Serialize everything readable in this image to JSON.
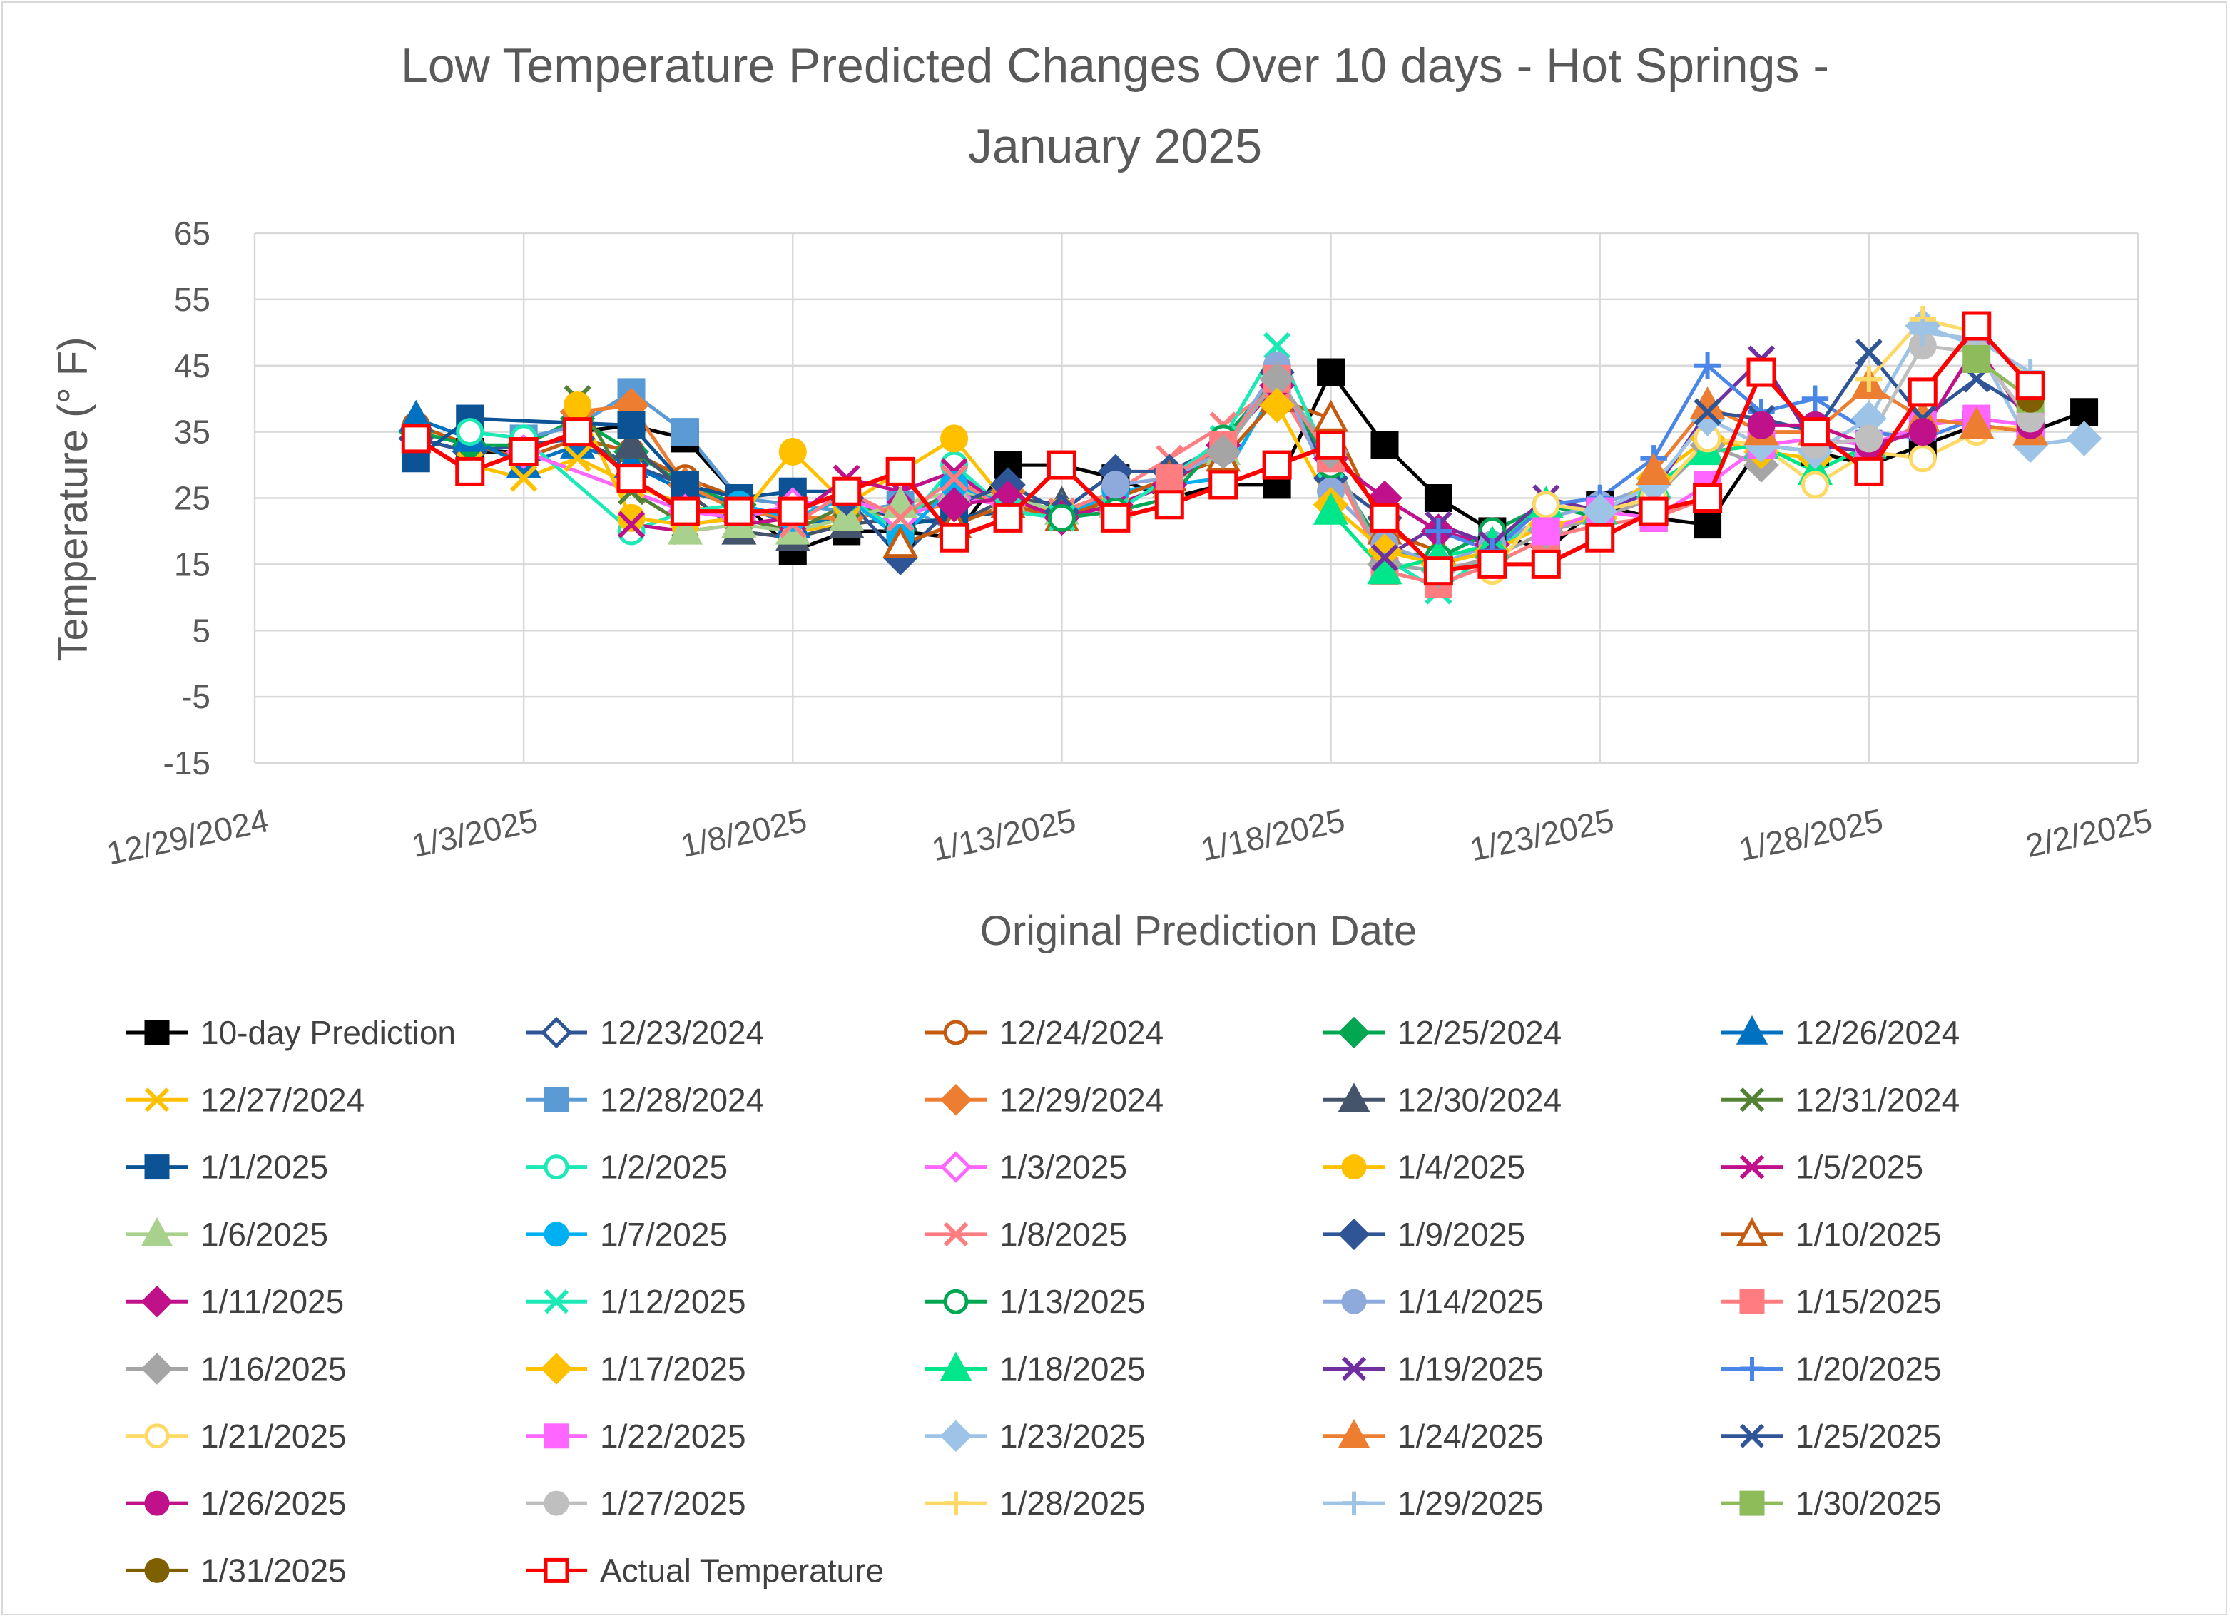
{
  "chart_data": {
    "type": "line",
    "title_lines": [
      "Low Temperature Predicted Changes Over 10 days - Hot Springs -",
      "January 2025"
    ],
    "xlabel": "Original Prediction Date",
    "ylabel": "Temperature (° F)",
    "ylim": [
      -15,
      65
    ],
    "y_ticks": [
      "65",
      "55",
      "45",
      "35",
      "25",
      "15",
      "5",
      "-5",
      "-15"
    ],
    "x_range_days": [
      0,
      35
    ],
    "x_ticks": [
      "12/29/2024",
      "1/3/2025",
      "1/8/2025",
      "1/13/2025",
      "1/18/2025",
      "1/23/2025",
      "1/28/2025",
      "2/2/2025"
    ],
    "x_days_origin": "12/29/2024",
    "series": [
      {
        "name": "10-day Prediction",
        "color": "#000000",
        "marker": "square",
        "fill": true,
        "x": [
          3,
          4,
          5,
          6,
          7,
          8,
          9,
          10,
          11,
          12,
          13,
          14,
          15,
          16,
          17,
          18,
          19,
          20,
          21,
          22,
          23,
          24,
          25,
          26,
          27,
          28,
          29,
          30,
          31,
          32,
          33,
          34
        ],
        "values": [
          34,
          32,
          32,
          35,
          36,
          34,
          25,
          17,
          20,
          20,
          19,
          30,
          30,
          28,
          25,
          27,
          27,
          44,
          33,
          25,
          20,
          17,
          24,
          22,
          21,
          33,
          32,
          30,
          33,
          36,
          35,
          38
        ]
      },
      {
        "name": "12/23/2024",
        "color": "#2f5597",
        "marker": "diamond",
        "fill": false,
        "x": [
          3,
          4,
          5,
          6,
          7,
          8
        ],
        "values": [
          34,
          32,
          33,
          34,
          30,
          27
        ]
      },
      {
        "name": "12/24/2024",
        "color": "#c55a11",
        "marker": "circle",
        "fill": false,
        "x": [
          3,
          4,
          5,
          6,
          7,
          8,
          9
        ],
        "values": [
          36,
          33,
          31,
          34,
          32,
          28,
          25
        ]
      },
      {
        "name": "12/25/2024",
        "color": "#00a651",
        "marker": "diamond",
        "fill": true,
        "x": [
          3,
          4,
          5,
          6,
          7,
          8,
          9,
          10
        ],
        "values": [
          35,
          33,
          33,
          37,
          32,
          27,
          24,
          22
        ]
      },
      {
        "name": "12/26/2024",
        "color": "#0070c0",
        "marker": "triangle",
        "fill": true,
        "x": [
          3,
          4,
          5,
          6,
          7,
          8,
          9,
          10,
          11
        ],
        "values": [
          37,
          34,
          30,
          33,
          30,
          26,
          24,
          21,
          22
        ]
      },
      {
        "name": "12/27/2024",
        "color": "#ffc000",
        "marker": "x",
        "fill": false,
        "x": [
          4,
          5,
          6,
          7,
          8,
          9,
          10,
          11,
          12
        ],
        "values": [
          30,
          28,
          31,
          27,
          24,
          22,
          20,
          21,
          22
        ]
      },
      {
        "name": "12/28/2024",
        "color": "#5b9bd5",
        "marker": "square",
        "fill": true,
        "x": [
          5,
          6,
          7,
          8,
          9,
          10,
          11,
          12,
          13
        ],
        "values": [
          34,
          36,
          41,
          35,
          25,
          24,
          23,
          24,
          20
        ]
      },
      {
        "name": "12/29/2024",
        "color": "#ed7d31",
        "marker": "diamond",
        "fill": true,
        "x": [
          6,
          7,
          8,
          9,
          10,
          11,
          12,
          13,
          14
        ],
        "values": [
          38,
          39,
          27,
          23,
          22,
          22,
          23,
          24,
          26
        ]
      },
      {
        "name": "12/30/2024",
        "color": "#44546a",
        "marker": "triangle",
        "fill": true,
        "x": [
          7,
          8,
          9,
          10,
          11,
          12,
          13,
          14,
          15
        ],
        "values": [
          33,
          26,
          20,
          19,
          21,
          22,
          21,
          25,
          24
        ]
      },
      {
        "name": "12/31/2024",
        "color": "#548235",
        "marker": "x",
        "fill": false,
        "x": [
          6,
          7,
          8,
          9,
          10,
          11,
          12,
          13,
          14,
          15
        ],
        "values": [
          40,
          26,
          21,
          22,
          20,
          24,
          22,
          26,
          24,
          23
        ]
      },
      {
        "name": "1/1/2025",
        "color": "#0b5394",
        "marker": "square",
        "fill": true,
        "x": [
          3,
          4,
          7,
          8,
          9,
          10,
          11,
          12,
          13,
          14
        ],
        "values": [
          31,
          37,
          36,
          27,
          25,
          26,
          26,
          21,
          22,
          23
        ]
      },
      {
        "name": "1/2/2025",
        "color": "#1de9b6",
        "marker": "circle",
        "fill": false,
        "x": [
          4,
          5,
          7,
          8,
          9,
          10,
          11,
          12,
          13,
          14,
          15
        ],
        "values": [
          35,
          34,
          20,
          23,
          24,
          22,
          25,
          20,
          30,
          23,
          22
        ]
      },
      {
        "name": "1/3/2025",
        "color": "#ff66ff",
        "marker": "diamond",
        "fill": false,
        "x": [
          5,
          8,
          9,
          10,
          11,
          12,
          13,
          14,
          15,
          16
        ],
        "values": [
          32,
          23,
          22,
          24,
          25,
          22,
          25,
          24,
          22,
          23
        ]
      },
      {
        "name": "1/4/2025",
        "color": "#ffc000",
        "marker": "circle",
        "fill": true,
        "x": [
          6,
          7,
          8,
          9,
          10,
          11,
          12,
          13,
          14,
          15,
          16
        ],
        "values": [
          39,
          22,
          21,
          22,
          32,
          24,
          29,
          34,
          24,
          23,
          25
        ]
      },
      {
        "name": "1/5/2025",
        "color": "#c0118a",
        "marker": "x",
        "fill": false,
        "x": [
          7,
          8,
          9,
          10,
          11,
          12,
          13,
          14,
          15,
          16,
          17
        ],
        "values": [
          21,
          20,
          21,
          22,
          28,
          26,
          29,
          23,
          23,
          24,
          27
        ]
      },
      {
        "name": "1/6/2025",
        "color": "#a9d18e",
        "marker": "triangle",
        "fill": true,
        "x": [
          8,
          9,
          10,
          11,
          12,
          13,
          14,
          15,
          16,
          17,
          18
        ],
        "values": [
          20,
          21,
          20,
          22,
          24,
          26,
          25,
          23,
          24,
          27,
          32
        ]
      },
      {
        "name": "1/7/2025",
        "color": "#00b0f0",
        "marker": "circle",
        "fill": true,
        "x": [
          9,
          10,
          11,
          12,
          13,
          14,
          15,
          16,
          17,
          18,
          19
        ],
        "values": [
          24,
          22,
          25,
          19,
          27,
          24,
          22,
          26,
          27,
          28,
          42
        ]
      },
      {
        "name": "1/8/2025",
        "color": "#ff7c80",
        "marker": "x",
        "fill": false,
        "x": [
          10,
          11,
          12,
          13,
          14,
          15,
          16,
          17,
          18,
          19,
          20
        ],
        "values": [
          21,
          26,
          22,
          28,
          23,
          23,
          26,
          31,
          36,
          42,
          28
        ]
      },
      {
        "name": "1/9/2025",
        "color": "#2f5597",
        "marker": "diamond",
        "fill": true,
        "x": [
          11,
          12,
          13,
          14,
          15,
          16,
          17,
          18,
          19,
          20,
          21
        ],
        "values": [
          25,
          16,
          24,
          27,
          23,
          29,
          29,
          33,
          44,
          28,
          22
        ]
      },
      {
        "name": "1/10/2025",
        "color": "#c55a11",
        "marker": "triangle",
        "fill": false,
        "x": [
          12,
          13,
          14,
          15,
          16,
          17,
          18,
          19,
          20,
          21,
          22
        ],
        "values": [
          18,
          21,
          24,
          22,
          25,
          28,
          31,
          40,
          37,
          20,
          17
        ]
      },
      {
        "name": "1/11/2025",
        "color": "#c0118a",
        "marker": "diamond",
        "fill": true,
        "x": [
          13,
          14,
          15,
          16,
          17,
          18,
          19,
          20,
          21,
          22,
          23
        ],
        "values": [
          24,
          25,
          22,
          24,
          27,
          33,
          42,
          31,
          25,
          20,
          18
        ]
      },
      {
        "name": "1/12/2025",
        "color": "#1de9b6",
        "marker": "x",
        "fill": false,
        "x": [
          14,
          15,
          16,
          17,
          18,
          19,
          20,
          21,
          22,
          23,
          24
        ],
        "values": [
          23,
          22,
          23,
          28,
          34,
          48,
          30,
          16,
          11,
          17,
          22
        ]
      },
      {
        "name": "1/13/2025",
        "color": "#00a651",
        "marker": "circle",
        "fill": false,
        "x": [
          15,
          16,
          17,
          18,
          19,
          20,
          21,
          22,
          23,
          24,
          25
        ],
        "values": [
          22,
          23,
          25,
          34,
          43,
          30,
          17,
          16,
          20,
          24,
          22
        ]
      },
      {
        "name": "1/14/2025",
        "color": "#8ea9db",
        "marker": "circle",
        "fill": true,
        "x": [
          16,
          17,
          18,
          19,
          20,
          21,
          22,
          23,
          24,
          25,
          26
        ],
        "values": [
          27,
          28,
          32,
          45,
          26,
          18,
          15,
          18,
          22,
          24,
          27
        ]
      },
      {
        "name": "1/15/2025",
        "color": "#ff7c80",
        "marker": "square",
        "fill": true,
        "x": [
          17,
          18,
          19,
          20,
          21,
          22,
          23,
          24,
          25,
          26,
          27
        ],
        "values": [
          28,
          33,
          43,
          31,
          14,
          12,
          15,
          19,
          21,
          22,
          25
        ]
      },
      {
        "name": "1/16/2025",
        "color": "#a5a5a5",
        "marker": "diamond",
        "fill": true,
        "x": [
          18,
          19,
          20,
          21,
          22,
          23,
          24,
          25,
          26,
          27,
          28
        ],
        "values": [
          32,
          43,
          32,
          15,
          14,
          16,
          20,
          22,
          25,
          33,
          30
        ]
      },
      {
        "name": "1/17/2025",
        "color": "#ffc000",
        "marker": "diamond",
        "fill": true,
        "x": [
          19,
          20,
          21,
          22,
          23,
          24,
          25,
          26,
          27,
          28,
          29
        ],
        "values": [
          39,
          24,
          17,
          15,
          17,
          21,
          22,
          28,
          34,
          32,
          31
        ]
      },
      {
        "name": "1/18/2025",
        "color": "#00e68a",
        "marker": "triangle",
        "fill": true,
        "x": [
          20,
          21,
          22,
          23,
          24,
          25,
          26,
          27,
          28,
          29,
          30
        ],
        "values": [
          23,
          14,
          16,
          18,
          24,
          23,
          27,
          32,
          33,
          29,
          33
        ]
      },
      {
        "name": "1/19/2025",
        "color": "#7030a0",
        "marker": "x",
        "fill": false,
        "x": [
          21,
          22,
          23,
          24,
          25,
          26,
          27,
          28,
          29,
          30,
          31
        ],
        "values": [
          16,
          21,
          18,
          25,
          23,
          26,
          38,
          46,
          33,
          32,
          36
        ]
      },
      {
        "name": "1/20/2025",
        "color": "#4a86e8",
        "marker": "plus",
        "fill": false,
        "x": [
          22,
          23,
          24,
          25,
          26,
          27,
          28,
          29,
          30,
          31,
          32
        ],
        "values": [
          20,
          17,
          24,
          25,
          31,
          45,
          38,
          40,
          35,
          34,
          37
        ]
      },
      {
        "name": "1/21/2025",
        "color": "#ffd966",
        "marker": "circle",
        "fill": false,
        "x": [
          23,
          24,
          25,
          26,
          27,
          28,
          29,
          30,
          31,
          32,
          33
        ],
        "values": [
          14,
          24,
          23,
          25,
          34,
          33,
          27,
          32,
          31,
          35,
          36
        ]
      },
      {
        "name": "1/22/2025",
        "color": "#ff66ff",
        "marker": "square",
        "fill": true,
        "x": [
          24,
          25,
          26,
          27,
          28,
          29,
          30,
          31,
          32,
          33
        ],
        "values": [
          20,
          23,
          22,
          27,
          33,
          34,
          33,
          36,
          37,
          36
        ]
      },
      {
        "name": "1/23/2025",
        "color": "#9dc3e6",
        "marker": "diamond",
        "fill": true,
        "x": [
          25,
          26,
          27,
          28,
          29,
          30,
          31,
          32,
          33,
          34
        ],
        "values": [
          23,
          27,
          37,
          33,
          32,
          37,
          51,
          48,
          33,
          34
        ]
      },
      {
        "name": "1/24/2025",
        "color": "#ed7d31",
        "marker": "triangle",
        "fill": true,
        "x": [
          26,
          27,
          28,
          29,
          30,
          31,
          32,
          33
        ],
        "values": [
          29,
          39,
          35,
          35,
          42,
          37,
          36,
          35
        ]
      },
      {
        "name": "1/25/2025",
        "color": "#2f5597",
        "marker": "x",
        "fill": false,
        "x": [
          27,
          28,
          29,
          30,
          31,
          32,
          33
        ],
        "values": [
          38,
          37,
          35,
          47,
          37,
          43,
          38
        ]
      },
      {
        "name": "1/26/2025",
        "color": "#c0118a",
        "marker": "circle",
        "fill": true,
        "x": [
          28,
          29,
          30,
          31,
          32,
          33
        ],
        "values": [
          36,
          36,
          33,
          35,
          48,
          36
        ]
      },
      {
        "name": "1/27/2025",
        "color": "#bfbfbf",
        "marker": "circle",
        "fill": true,
        "x": [
          29,
          30,
          31,
          32,
          33
        ],
        "values": [
          33,
          34,
          48,
          47,
          37
        ]
      },
      {
        "name": "1/28/2025",
        "color": "#ffd966",
        "marker": "plus",
        "fill": false,
        "x": [
          30,
          31,
          32,
          33
        ],
        "values": [
          43,
          52,
          50,
          43
        ]
      },
      {
        "name": "1/29/2025",
        "color": "#9dc3e6",
        "marker": "plus",
        "fill": false,
        "x": [
          31,
          32,
          33
        ],
        "values": [
          50,
          49,
          44
        ]
      },
      {
        "name": "1/30/2025",
        "color": "#8fbc5a",
        "marker": "square",
        "fill": true,
        "x": [
          32,
          33
        ],
        "values": [
          46,
          40
        ]
      },
      {
        "name": "1/31/2025",
        "color": "#7f6000",
        "marker": "circle",
        "fill": true,
        "x": [
          33
        ],
        "values": [
          40
        ]
      },
      {
        "name": "Actual Temperature",
        "color": "#ff0000",
        "marker": "square",
        "fill": false,
        "x": [
          3,
          4,
          5,
          6,
          7,
          8,
          9,
          10,
          11,
          12,
          13,
          14,
          15,
          16,
          17,
          18,
          19,
          20,
          21,
          22,
          23,
          24,
          25,
          26,
          27,
          28,
          29,
          30,
          31,
          32,
          33
        ],
        "values": [
          34,
          29,
          32,
          35,
          28,
          23,
          23,
          23,
          26,
          29,
          19,
          22,
          30,
          22,
          24,
          27,
          30,
          33,
          22,
          14,
          15,
          15,
          19,
          23,
          25,
          44,
          35,
          29,
          41,
          51,
          42
        ]
      }
    ]
  }
}
